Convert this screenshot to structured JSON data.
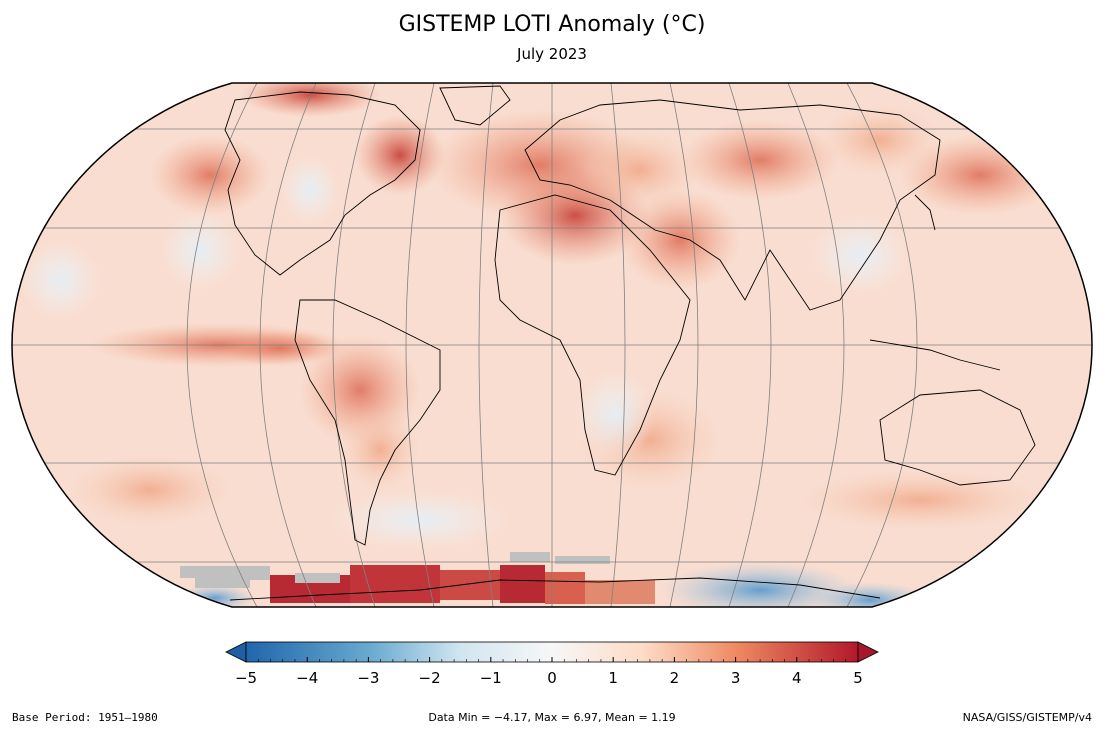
{
  "title": "GISTEMP LOTI Anomaly (°C)",
  "subtitle": "July 2023",
  "colorbar": {
    "min": -5,
    "max": 5,
    "ticks": [
      "−5",
      "−4",
      "−3",
      "−2",
      "−1",
      "0",
      "1",
      "2",
      "3",
      "4",
      "5"
    ],
    "colors": {
      "cold_extreme": "#1f5fa6",
      "cold": "#6fa8d2",
      "neutral": "#f7f7f7",
      "warm": "#f2a07f",
      "warm_extreme": "#b2182b",
      "no_data": "#c0c0c0"
    }
  },
  "footer": {
    "base_period": "Base Period: 1951–1980",
    "stats": "Data Min = −4.17, Max = 6.97, Mean = 1.19",
    "source": "NASA/GISS/GISTEMP/v4"
  },
  "map": {
    "projection": "Robinson",
    "data_min": -4.17,
    "data_max": 6.97,
    "data_mean": 1.19
  }
}
